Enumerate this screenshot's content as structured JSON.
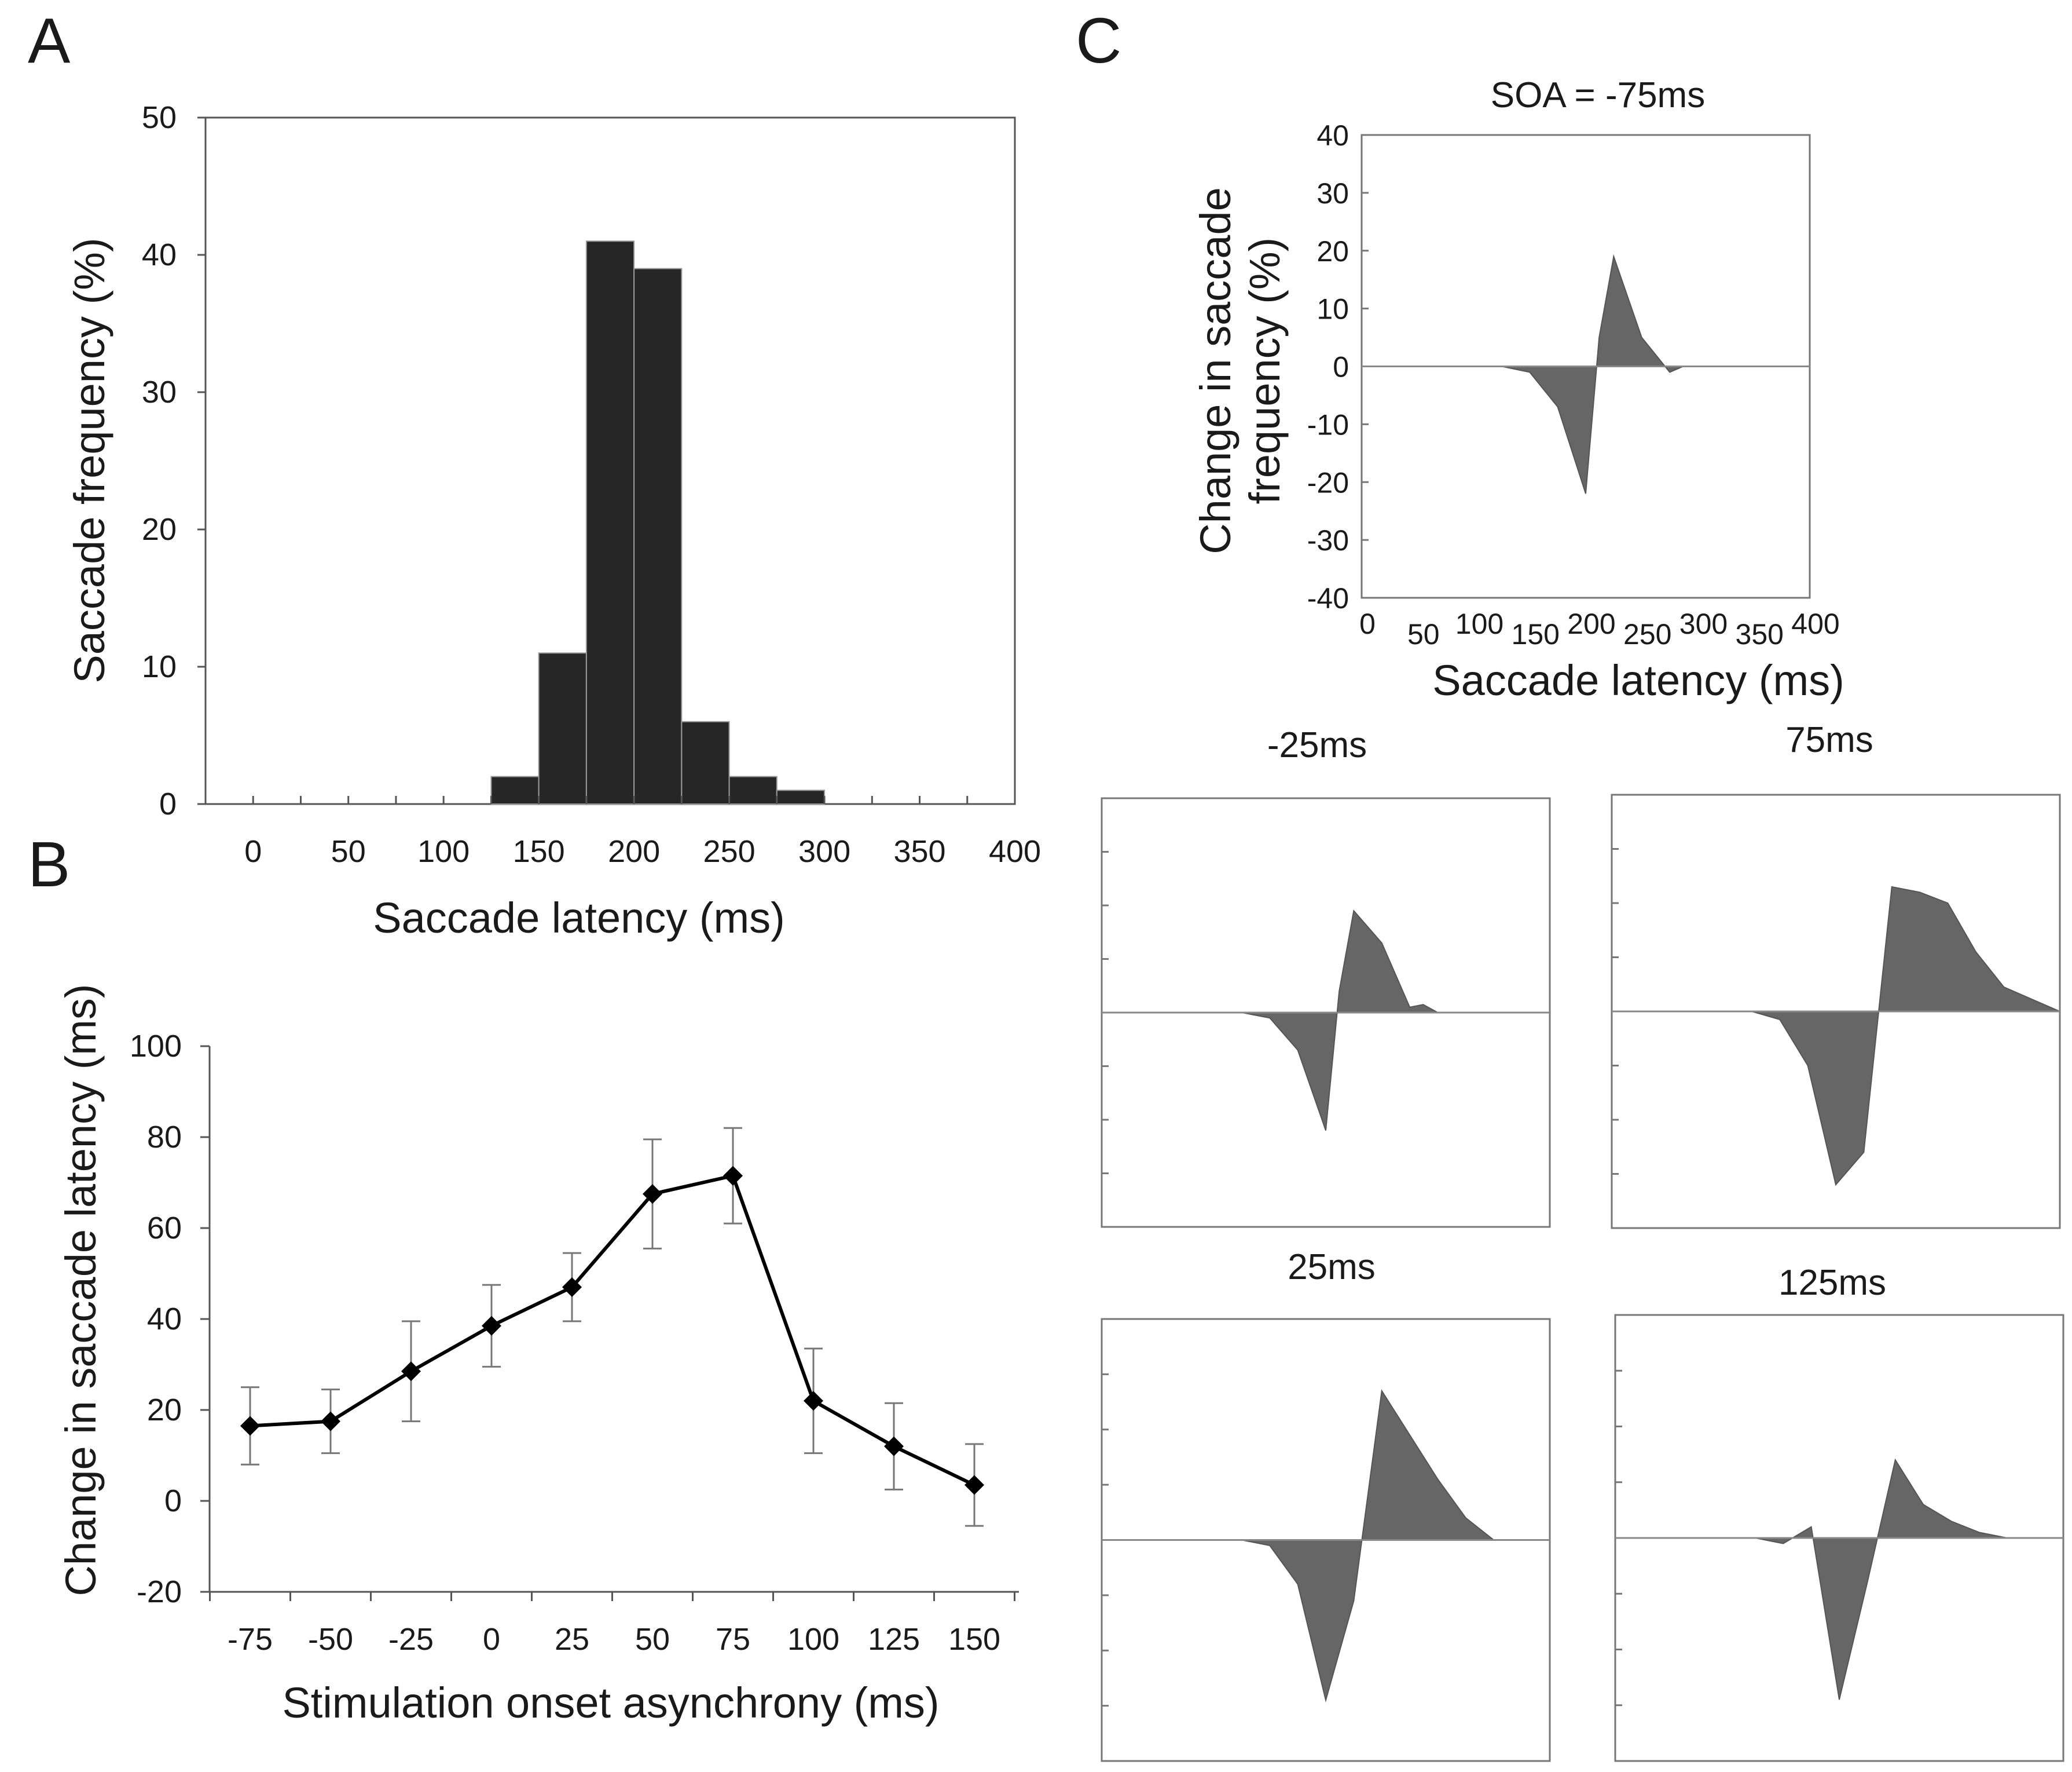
{
  "panel_labels": [
    "A",
    "B",
    "C"
  ],
  "chart_data": [
    {
      "id": "A",
      "type": "bar",
      "categories": [
        "0",
        "50",
        "100",
        "150",
        "200",
        "250",
        "300",
        "350",
        "400"
      ],
      "bins": [
        {
          "start": 0,
          "end": 25,
          "value": 0
        },
        {
          "start": 25,
          "end": 50,
          "value": 0
        },
        {
          "start": 50,
          "end": 75,
          "value": 0
        },
        {
          "start": 75,
          "end": 100,
          "value": 0
        },
        {
          "start": 100,
          "end": 125,
          "value": 0
        },
        {
          "start": 125,
          "end": 150,
          "value": 2
        },
        {
          "start": 150,
          "end": 175,
          "value": 11
        },
        {
          "start": 175,
          "end": 200,
          "value": 41
        },
        {
          "start": 200,
          "end": 225,
          "value": 39
        },
        {
          "start": 225,
          "end": 250,
          "value": 6
        },
        {
          "start": 250,
          "end": 275,
          "value": 2
        },
        {
          "start": 275,
          "end": 300,
          "value": 1
        },
        {
          "start": 300,
          "end": 325,
          "value": 0
        },
        {
          "start": 325,
          "end": 350,
          "value": 0
        },
        {
          "start": 350,
          "end": 375,
          "value": 0
        },
        {
          "start": 375,
          "end": 400,
          "value": 0
        }
      ],
      "xlim": [
        -25,
        400
      ],
      "ylim": [
        0,
        50
      ],
      "yticks": [
        "0",
        "10",
        "20",
        "30",
        "40",
        "50"
      ],
      "xlabel": "Saccade latency (ms)",
      "ylabel": "Saccade frequency (%)",
      "bar_color": "#262626"
    },
    {
      "id": "B",
      "type": "line",
      "categories": [
        "-75",
        "-50",
        "-25",
        "0",
        "25",
        "50",
        "75",
        "100",
        "125",
        "150"
      ],
      "series": [
        {
          "name": "Change in saccade latency",
          "values": [
            16.5,
            17.5,
            28.5,
            38.5,
            47,
            67.5,
            71.5,
            22,
            12,
            3.5
          ],
          "errors": [
            8.5,
            7,
            11,
            9,
            7.5,
            12,
            10.5,
            11.5,
            9.5,
            9
          ]
        }
      ],
      "ylim": [
        -20,
        100
      ],
      "yticks": [
        "-20",
        "0",
        "20",
        "40",
        "60",
        "80",
        "100"
      ],
      "xlabel": "Stimulation onset asynchrony (ms)",
      "ylabel": "Change in saccade latency (ms)"
    },
    {
      "id": "C-main",
      "type": "area",
      "title": "SOA = -75ms",
      "x": [
        0,
        25,
        50,
        75,
        100,
        125,
        150,
        175,
        200,
        212,
        225,
        250,
        275,
        287,
        300,
        400
      ],
      "values": [
        0,
        0,
        0,
        0,
        0,
        0,
        -1,
        -7,
        -22,
        5,
        19,
        5,
        -1,
        0,
        0,
        0
      ],
      "xlim": [
        0,
        400
      ],
      "ylim": [
        -40,
        40
      ],
      "xticks": [
        "0",
        "50",
        "100",
        "150",
        "200",
        "250",
        "300",
        "350",
        "400"
      ],
      "yticks": [
        "-40",
        "-30",
        "-20",
        "-10",
        "0",
        "10",
        "20",
        "30",
        "40"
      ],
      "xlabel": "Saccade latency (ms)",
      "ylabel_line1": "Change in saccade",
      "ylabel_line2": "frequency (%)"
    },
    {
      "id": "C-minus25",
      "type": "area",
      "title": "-25ms",
      "x": [
        0,
        25,
        50,
        75,
        100,
        125,
        150,
        175,
        200,
        212,
        225,
        250,
        275,
        287,
        300,
        400
      ],
      "values": [
        0,
        0,
        0,
        0,
        0,
        0,
        -1,
        -7,
        -22,
        4,
        19,
        13,
        1,
        1.5,
        0,
        0
      ],
      "xlim": [
        0,
        400
      ],
      "ylim": [
        -40,
        40
      ]
    },
    {
      "id": "C-75",
      "type": "area",
      "title": "75ms",
      "x": [
        0,
        25,
        50,
        75,
        100,
        125,
        150,
        175,
        200,
        225,
        250,
        275,
        300,
        325,
        350,
        400
      ],
      "values": [
        0,
        0,
        0,
        0,
        0,
        0,
        -1.5,
        -10,
        -32,
        -26,
        23,
        22,
        20,
        11,
        4.5,
        0
      ],
      "xlim": [
        0,
        400
      ],
      "ylim": [
        -40,
        40
      ]
    },
    {
      "id": "C-25",
      "type": "area",
      "title": "25ms",
      "x": [
        0,
        25,
        50,
        75,
        100,
        125,
        150,
        175,
        200,
        225,
        250,
        275,
        300,
        325,
        350,
        400
      ],
      "values": [
        0,
        0,
        0,
        0,
        0,
        0,
        -1,
        -8,
        -29,
        -11,
        27,
        19,
        11,
        4,
        0,
        0
      ],
      "xlim": [
        0,
        400
      ],
      "ylim": [
        -40,
        40
      ]
    },
    {
      "id": "C-125",
      "type": "area",
      "title": "125ms",
      "x": [
        0,
        25,
        50,
        75,
        100,
        125,
        150,
        175,
        200,
        225,
        250,
        275,
        300,
        325,
        350,
        400
      ],
      "values": [
        0,
        0,
        0,
        0,
        0,
        0,
        -1,
        2,
        -29,
        -8,
        14,
        6,
        3,
        1,
        0,
        0
      ],
      "xlim": [
        0,
        400
      ],
      "ylim": [
        -40,
        40
      ]
    }
  ]
}
